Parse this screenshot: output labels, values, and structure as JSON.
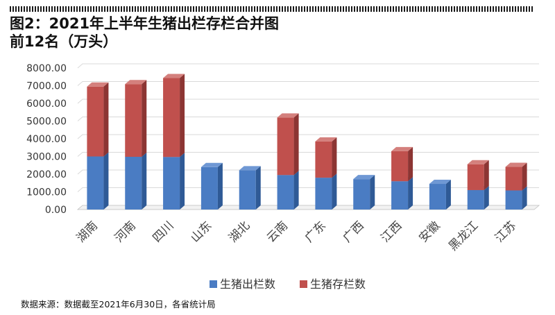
{
  "title": {
    "line1": "图2：2021年上半年生猪出栏存栏合并图",
    "line2": "前12名（万头）"
  },
  "source": "数据来源：数据截至2021年6月30日，各省统计局",
  "colors": {
    "series1": "#4a7cc3",
    "series1_side": "#2f5a96",
    "series1_top": "#6f98d4",
    "series2": "#c0504d",
    "series2_side": "#8c3533",
    "series2_top": "#d4807d",
    "grid": "#d9d9d9",
    "axis": "#bfbfbf"
  },
  "chart_data": {
    "type": "bar",
    "stacked": true,
    "three_d": true,
    "categories": [
      "湖南",
      "河南",
      "四川",
      "山东",
      "湖北",
      "云南",
      "广东",
      "广西",
      "江西",
      "安徽",
      "黑龙江",
      "江苏"
    ],
    "series": [
      {
        "name": "生猪出栏数",
        "values": [
          3000,
          2980,
          2970,
          2400,
          2220,
          1950,
          1800,
          1720,
          1600,
          1450,
          1100,
          1080
        ]
      },
      {
        "name": "生猪存栏数",
        "values": [
          3950,
          4110,
          4460,
          0,
          0,
          3250,
          2050,
          0,
          1700,
          0,
          1460,
          1330
        ]
      }
    ],
    "yticks": [
      "0.00",
      "1000.00",
      "2000.00",
      "3000.00",
      "4000.00",
      "5000.00",
      "6000.00",
      "7000.00",
      "8000.00"
    ],
    "ylim": [
      0,
      8000
    ],
    "grid": true,
    "legend_position": "bottom"
  }
}
